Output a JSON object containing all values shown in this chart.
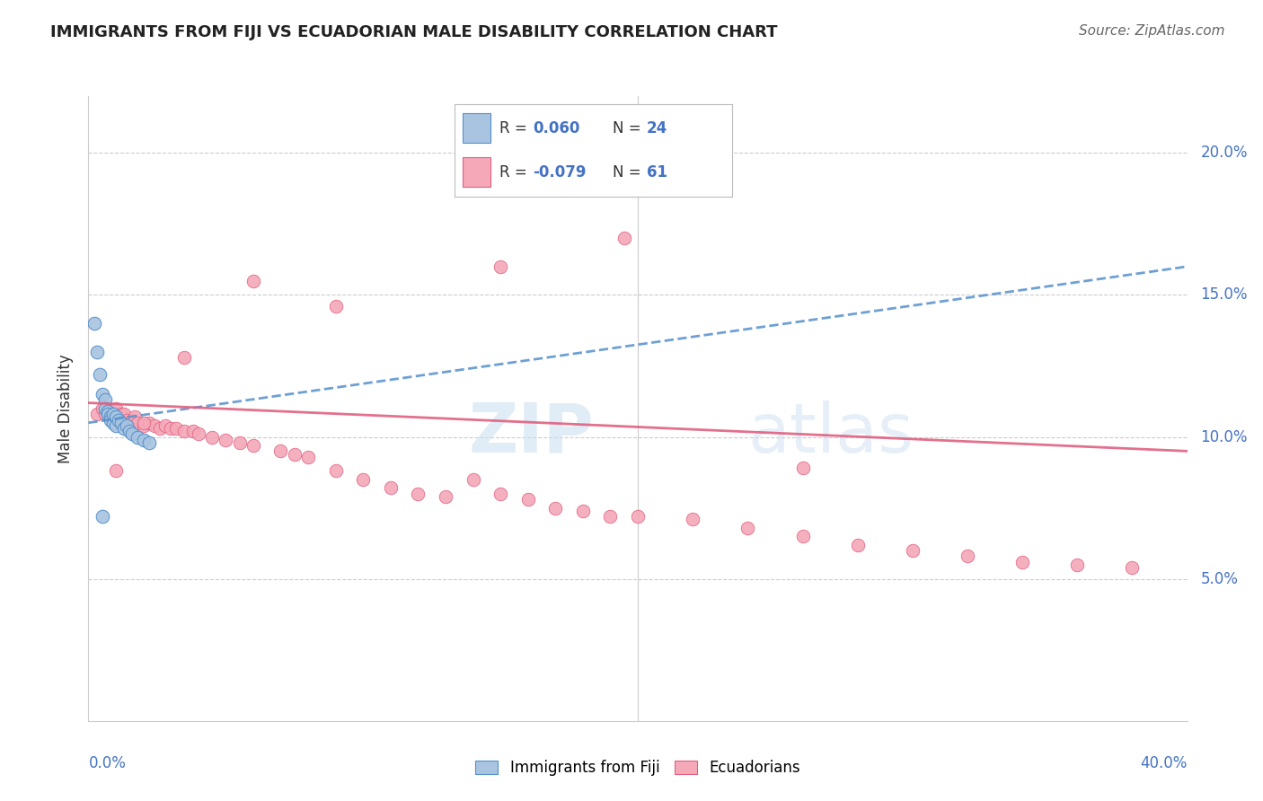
{
  "title": "IMMIGRANTS FROM FIJI VS ECUADORIAN MALE DISABILITY CORRELATION CHART",
  "source": "Source: ZipAtlas.com",
  "ylabel": "Male Disability",
  "fiji_R": 0.06,
  "fiji_N": 24,
  "ecuador_R": -0.079,
  "ecuador_N": 61,
  "fiji_color": "#a8c4e0",
  "ecuador_color": "#f4a8b8",
  "fiji_line_color": "#5590cc",
  "ecuador_line_color": "#e06080",
  "watermark_zip": "ZIP",
  "watermark_atlas": "atlas",
  "xlim": [
    0.0,
    0.4
  ],
  "ylim": [
    0.0,
    0.22
  ],
  "yticks": [
    0.05,
    0.1,
    0.15,
    0.2
  ],
  "ytick_labels": [
    "5.0%",
    "10.0%",
    "15.0%",
    "20.0%"
  ],
  "fiji_line_x": [
    0.0,
    0.4
  ],
  "fiji_line_y": [
    0.105,
    0.16
  ],
  "ecuador_line_x": [
    0.0,
    0.4
  ],
  "ecuador_line_y": [
    0.112,
    0.095
  ],
  "fiji_x": [
    0.002,
    0.003,
    0.004,
    0.005,
    0.006,
    0.006,
    0.007,
    0.007,
    0.008,
    0.008,
    0.009,
    0.009,
    0.01,
    0.01,
    0.011,
    0.012,
    0.013,
    0.014,
    0.015,
    0.016,
    0.018,
    0.02,
    0.022,
    0.005
  ],
  "fiji_y": [
    0.14,
    0.13,
    0.122,
    0.115,
    0.113,
    0.11,
    0.109,
    0.108,
    0.107,
    0.106,
    0.108,
    0.105,
    0.107,
    0.104,
    0.106,
    0.105,
    0.103,
    0.104,
    0.102,
    0.101,
    0.1,
    0.099,
    0.098,
    0.072
  ],
  "ecuador_x": [
    0.003,
    0.005,
    0.006,
    0.007,
    0.008,
    0.009,
    0.01,
    0.011,
    0.012,
    0.013,
    0.014,
    0.015,
    0.016,
    0.017,
    0.018,
    0.02,
    0.022,
    0.024,
    0.026,
    0.028,
    0.03,
    0.032,
    0.035,
    0.038,
    0.04,
    0.045,
    0.05,
    0.055,
    0.06,
    0.07,
    0.075,
    0.08,
    0.09,
    0.1,
    0.11,
    0.12,
    0.13,
    0.14,
    0.15,
    0.16,
    0.17,
    0.18,
    0.19,
    0.2,
    0.22,
    0.24,
    0.26,
    0.28,
    0.3,
    0.32,
    0.34,
    0.36,
    0.38,
    0.01,
    0.02,
    0.035,
    0.06,
    0.09,
    0.15,
    0.26,
    0.195
  ],
  "ecuador_y": [
    0.108,
    0.11,
    0.108,
    0.109,
    0.107,
    0.108,
    0.11,
    0.107,
    0.108,
    0.108,
    0.106,
    0.105,
    0.106,
    0.107,
    0.105,
    0.104,
    0.105,
    0.104,
    0.103,
    0.104,
    0.103,
    0.103,
    0.102,
    0.102,
    0.101,
    0.1,
    0.099,
    0.098,
    0.097,
    0.095,
    0.094,
    0.093,
    0.088,
    0.085,
    0.082,
    0.08,
    0.079,
    0.085,
    0.08,
    0.078,
    0.075,
    0.074,
    0.072,
    0.072,
    0.071,
    0.068,
    0.065,
    0.062,
    0.06,
    0.058,
    0.056,
    0.055,
    0.054,
    0.088,
    0.105,
    0.128,
    0.155,
    0.146,
    0.16,
    0.089,
    0.17
  ]
}
